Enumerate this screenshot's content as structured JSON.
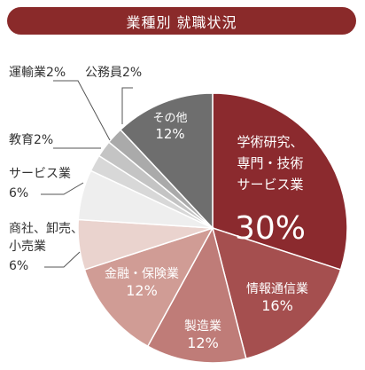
{
  "title": "業種別 就職状況",
  "chart_data": {
    "type": "pie",
    "title": "業種別 就職状況",
    "slices": [
      {
        "label_lines": [
          "学術研究、",
          "専門・技術",
          "サービス業"
        ],
        "value": 30,
        "value_text": "30%",
        "color": "#8b2a2e"
      },
      {
        "label_lines": [
          "情報通信業"
        ],
        "value": 16,
        "value_text": "16%",
        "color": "#a54f4f"
      },
      {
        "label_lines": [
          "製造業"
        ],
        "value": 12,
        "value_text": "12%",
        "color": "#bf7c78"
      },
      {
        "label_lines": [
          "金融・保険業"
        ],
        "value": 12,
        "value_text": "12%",
        "color": "#d09c95"
      },
      {
        "label_lines": [
          "商社、卸売、",
          "小売業"
        ],
        "value": 6,
        "value_text": "6%",
        "color": "#ead3ce"
      },
      {
        "label_lines": [
          "サービス業"
        ],
        "value": 6,
        "value_text": "6%",
        "color": "#eeeeee"
      },
      {
        "label_lines": [
          "教育"
        ],
        "value": 2,
        "value_text": "2%",
        "color": "#d8d8d8"
      },
      {
        "label_lines": [
          "運輸業"
        ],
        "value": 2,
        "value_text": "2%",
        "color": "#c4c4c4"
      },
      {
        "label_lines": [
          "公務員"
        ],
        "value": 2,
        "value_text": "2%",
        "color": "#aaaaaa"
      },
      {
        "label_lines": [
          "その他"
        ],
        "value": 12,
        "value_text": "12%",
        "color": "#6e6e6e"
      }
    ]
  }
}
